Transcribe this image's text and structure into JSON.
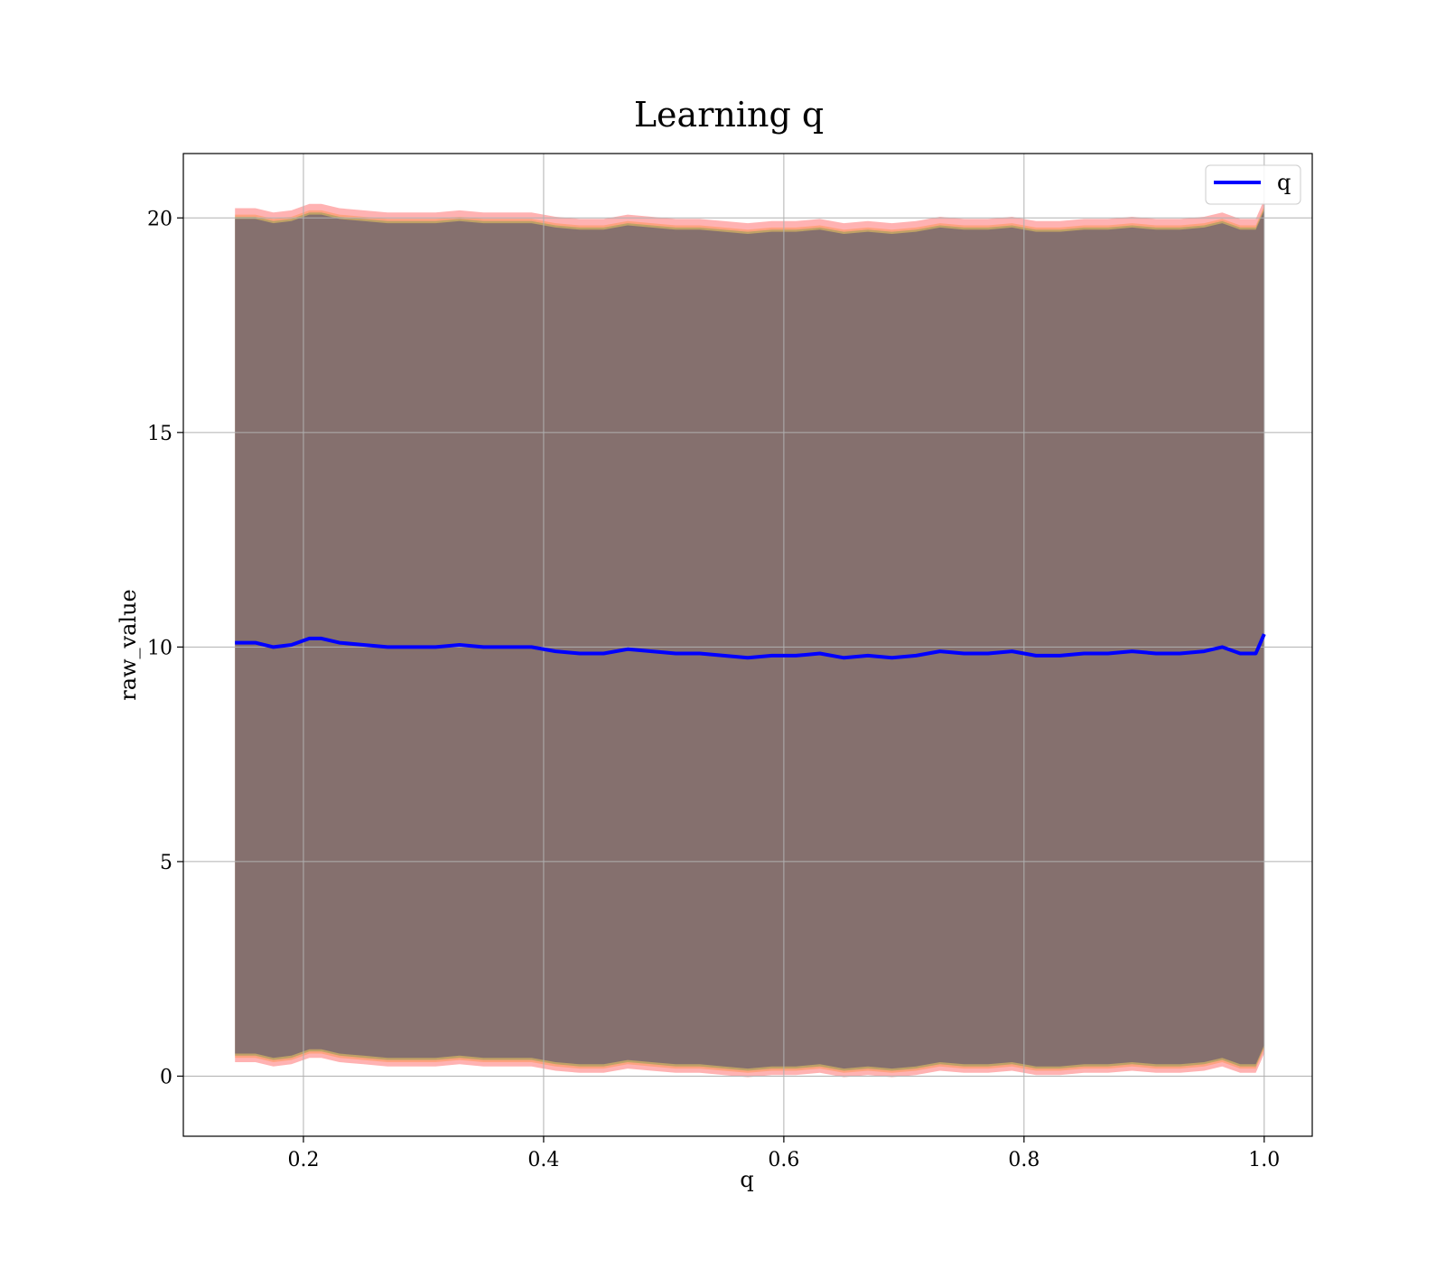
{
  "chart_data": {
    "type": "line",
    "title": "Learning q",
    "xlabel": "q",
    "ylabel": "raw_value",
    "xlim": [
      0.1,
      1.04
    ],
    "ylim": [
      -1.4,
      21.5
    ],
    "x_ticks": [
      0.2,
      0.4,
      0.6,
      0.8,
      1.0
    ],
    "x_tick_labels": [
      "0.2",
      "0.4",
      "0.6",
      "0.8",
      "1.0"
    ],
    "y_ticks": [
      0,
      5,
      10,
      15,
      20
    ],
    "y_tick_labels": [
      "0",
      "5",
      "10",
      "15",
      "20"
    ],
    "grid": true,
    "legend": {
      "placement": "top-right",
      "entries": [
        {
          "label": "q",
          "color": "#0000ff"
        }
      ]
    },
    "series": [
      {
        "name": "q",
        "color": "#0000ff",
        "x": [
          0.143,
          0.16,
          0.175,
          0.19,
          0.205,
          0.215,
          0.23,
          0.25,
          0.27,
          0.29,
          0.31,
          0.33,
          0.35,
          0.37,
          0.39,
          0.41,
          0.43,
          0.45,
          0.47,
          0.49,
          0.51,
          0.53,
          0.55,
          0.57,
          0.59,
          0.61,
          0.63,
          0.65,
          0.67,
          0.69,
          0.71,
          0.73,
          0.75,
          0.77,
          0.79,
          0.81,
          0.83,
          0.85,
          0.87,
          0.89,
          0.91,
          0.93,
          0.95,
          0.965,
          0.98,
          0.993,
          1.0
        ],
        "y": [
          10.1,
          10.1,
          10.0,
          10.05,
          10.2,
          10.2,
          10.1,
          10.05,
          10.0,
          10.0,
          10.0,
          10.05,
          10.0,
          10.0,
          10.0,
          9.9,
          9.85,
          9.85,
          9.95,
          9.9,
          9.85,
          9.85,
          9.8,
          9.75,
          9.8,
          9.8,
          9.85,
          9.75,
          9.8,
          9.75,
          9.8,
          9.9,
          9.85,
          9.85,
          9.9,
          9.8,
          9.8,
          9.85,
          9.85,
          9.9,
          9.85,
          9.85,
          9.9,
          10.0,
          9.85,
          9.85,
          10.3
        ]
      }
    ],
    "bands": [
      {
        "color": "#ff0000",
        "upper": 20.05,
        "lower": 0.15
      },
      {
        "color": "#ff7f0e",
        "upper": 19.9,
        "lower": 0.25
      },
      {
        "color": "#2ca02c",
        "upper": 19.85,
        "lower": 0.3
      },
      {
        "color": "#000080",
        "upper": 19.8,
        "lower": 0.35
      }
    ]
  }
}
